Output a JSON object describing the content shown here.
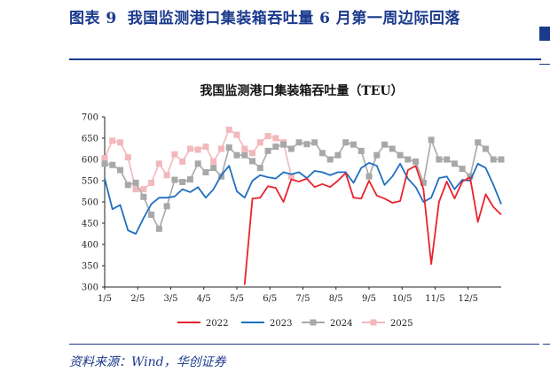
{
  "figure": {
    "label": "图表 9",
    "title": "我国监测港口集装箱吞吐量 6 月第一周边际回落",
    "source": "资料来源：Wind，华创证券"
  },
  "colors": {
    "2022": "#e8232e",
    "2023": "#1f6fc1",
    "2024": "#a8a8a8",
    "2025": "#f3b8bb",
    "frame": "#1b3a8c"
  },
  "chart_data": {
    "type": "line",
    "title": "我国监测港口集装箱吞吐量（TEU）",
    "xlabel": "",
    "ylabel": "",
    "ylim": [
      300,
      700
    ],
    "yticks": [
      300,
      350,
      400,
      450,
      500,
      550,
      600,
      650,
      700
    ],
    "x_ticks": [
      "1/5",
      "2/5",
      "3/5",
      "4/5",
      "5/5",
      "6/5",
      "7/5",
      "8/5",
      "9/5",
      "10/5",
      "11/5",
      "12/5"
    ],
    "legend_position": "bottom",
    "grid": false,
    "series": [
      {
        "name": "2022",
        "marker": "none",
        "x": [
          19,
          20,
          21,
          22,
          23,
          24,
          25,
          26,
          27,
          28,
          29,
          30,
          31,
          32,
          33,
          34,
          35,
          36,
          37,
          38,
          39,
          40,
          41,
          42,
          43,
          44,
          45,
          46,
          47,
          48,
          49,
          50,
          51,
          52
        ],
        "values": [
          305,
          508,
          510,
          537,
          533,
          500,
          553,
          548,
          555,
          535,
          542,
          535,
          550,
          568,
          510,
          508,
          550,
          515,
          508,
          498,
          502,
          575,
          585,
          530,
          354,
          500,
          548,
          508,
          548,
          558,
          453,
          518,
          488,
          470
        ]
      },
      {
        "name": "2023",
        "marker": "none",
        "x": [
          1,
          2,
          3,
          4,
          5,
          6,
          7,
          8,
          9,
          10,
          11,
          12,
          13,
          14,
          15,
          16,
          17,
          18,
          19,
          20,
          21,
          22,
          23,
          24,
          25,
          26,
          27,
          28,
          29,
          30,
          31,
          32,
          33,
          34,
          35,
          36,
          37,
          38,
          39,
          40,
          41,
          42,
          43,
          44,
          45,
          46,
          47,
          48,
          49,
          50,
          51,
          52
        ],
        "values": [
          555,
          483,
          493,
          433,
          425,
          462,
          495,
          510,
          510,
          513,
          530,
          523,
          535,
          510,
          530,
          563,
          585,
          525,
          510,
          550,
          563,
          558,
          555,
          570,
          565,
          570,
          556,
          573,
          570,
          563,
          570,
          570,
          545,
          580,
          592,
          585,
          540,
          560,
          590,
          555,
          535,
          500,
          510,
          556,
          560,
          530,
          552,
          550,
          590,
          580,
          540,
          495
        ]
      },
      {
        "name": "2024",
        "marker": "square",
        "x": [
          1,
          2,
          3,
          4,
          5,
          6,
          7,
          8,
          9,
          10,
          11,
          12,
          13,
          14,
          15,
          16,
          17,
          18,
          19,
          20,
          21,
          22,
          23,
          24,
          25,
          26,
          27,
          28,
          29,
          30,
          31,
          32,
          33,
          34,
          35,
          36,
          37,
          38,
          39,
          40,
          41,
          42,
          43,
          44,
          45,
          46,
          47,
          48,
          49,
          50,
          51,
          52
        ],
        "values": [
          590,
          587,
          575,
          540,
          545,
          512,
          470,
          437,
          490,
          552,
          547,
          553,
          590,
          570,
          580,
          560,
          628,
          610,
          610,
          596,
          580,
          620,
          630,
          635,
          625,
          640,
          636,
          640,
          615,
          600,
          610,
          640,
          635,
          620,
          560,
          610,
          635,
          625,
          610,
          600,
          595,
          545,
          646,
          600,
          600,
          590,
          578,
          560,
          640,
          625,
          600,
          600
        ]
      },
      {
        "name": "2025",
        "marker": "square",
        "x": [
          1,
          2,
          3,
          4,
          5,
          6,
          7,
          8,
          9,
          10,
          11,
          12,
          13,
          14,
          15,
          16,
          17,
          18,
          19,
          20,
          21,
          22,
          23,
          24,
          25
        ],
        "values": [
          603,
          644,
          640,
          605,
          530,
          530,
          545,
          590,
          563,
          612,
          595,
          625,
          623,
          630,
          595,
          625,
          670,
          658,
          625,
          615,
          640,
          655,
          650,
          640,
          560
        ]
      }
    ]
  }
}
